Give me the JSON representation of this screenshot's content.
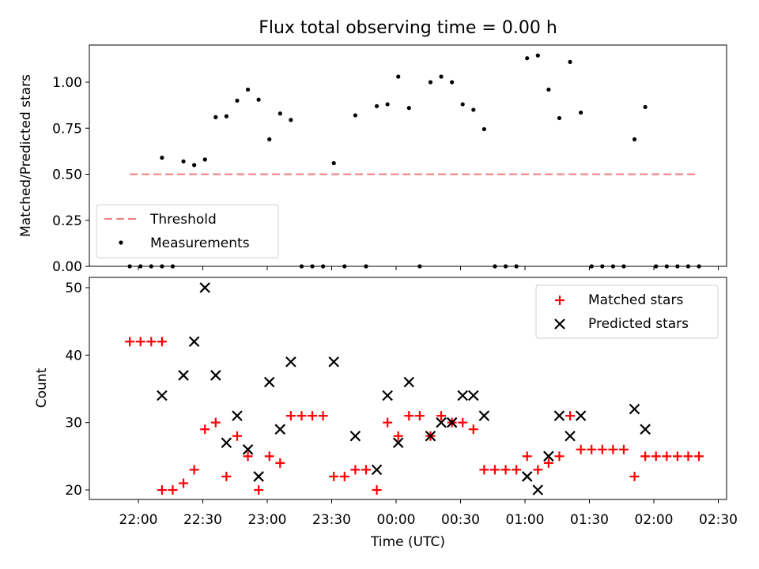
{
  "figure": {
    "title": "Flux total observing time = 0.00 h"
  },
  "chart_data": [
    {
      "type": "scatter",
      "ylabel": "Matched/Predicted stars",
      "ylim": [
        0,
        1.2
      ],
      "yticks": [
        0.0,
        0.25,
        0.5,
        0.75,
        1.0
      ],
      "ytick_labels": [
        "0.00",
        "0.25",
        "0.50",
        "0.75",
        "1.00"
      ],
      "legend": {
        "placement": "lower-left",
        "entries": [
          "Threshold",
          "Measurements"
        ]
      },
      "threshold": {
        "name": "Threshold",
        "value": 0.5,
        "x_start": "21:56",
        "x_end": "02:20",
        "color": "#f08080"
      },
      "series": [
        {
          "name": "Measurements",
          "color": "#000000",
          "points": [
            [
              "21:56",
              0
            ],
            [
              "21:61",
              0
            ],
            [
              "22:06",
              0
            ],
            [
              "22:11",
              0
            ],
            [
              "22:11",
              0.59
            ],
            [
              "22:16",
              0
            ],
            [
              "22:21",
              0.57
            ],
            [
              "22:26",
              0.55
            ],
            [
              "22:31",
              0.58
            ],
            [
              "22:36",
              0.81
            ],
            [
              "22:41",
              0.815
            ],
            [
              "22:46",
              0.9
            ],
            [
              "22:51",
              0.96
            ],
            [
              "22:56",
              0.905
            ],
            [
              "23:01",
              0.69
            ],
            [
              "23:06",
              0.83
            ],
            [
              "23:11",
              0.795
            ],
            [
              "23:16",
              0
            ],
            [
              "23:21",
              0
            ],
            [
              "23:26",
              0
            ],
            [
              "23:31",
              0.56
            ],
            [
              "23:36",
              0
            ],
            [
              "23:41",
              0.82
            ],
            [
              "23:46",
              0
            ],
            [
              "23:51",
              0.87
            ],
            [
              "23:56",
              0.88
            ],
            [
              "00:01",
              1.03
            ],
            [
              "00:06",
              0.86
            ],
            [
              "00:11",
              0
            ],
            [
              "00:16",
              1.0
            ],
            [
              "00:21",
              1.03
            ],
            [
              "00:26",
              1.0
            ],
            [
              "00:31",
              0.88
            ],
            [
              "00:36",
              0.85
            ],
            [
              "00:41",
              0.745
            ],
            [
              "00:46",
              0
            ],
            [
              "00:51",
              0
            ],
            [
              "00:56",
              0
            ],
            [
              "01:01",
              1.13
            ],
            [
              "01:06",
              1.145
            ],
            [
              "01:11",
              0.96
            ],
            [
              "01:16",
              0.805
            ],
            [
              "01:21",
              1.11
            ],
            [
              "01:26",
              0.835
            ],
            [
              "01:31",
              0
            ],
            [
              "01:36",
              0
            ],
            [
              "01:41",
              0
            ],
            [
              "01:46",
              0
            ],
            [
              "01:51",
              0.69
            ],
            [
              "01:56",
              0.865
            ],
            [
              "02:01",
              0
            ],
            [
              "02:06",
              0
            ],
            [
              "02:11",
              0
            ],
            [
              "02:16",
              0
            ],
            [
              "02:21",
              0
            ]
          ]
        }
      ]
    },
    {
      "type": "scatter",
      "xlabel": "Time (UTC)",
      "ylabel": "Count",
      "ylim": [
        18.5,
        51.5
      ],
      "yticks": [
        20,
        30,
        40,
        50
      ],
      "ytick_labels": [
        "20",
        "30",
        "40",
        "50"
      ],
      "xticks": [
        "22:00",
        "22:30",
        "23:00",
        "23:30",
        "00:00",
        "00:30",
        "01:00",
        "01:30",
        "02:00",
        "02:30"
      ],
      "legend": {
        "placement": "top-right",
        "entries": [
          "Matched stars",
          "Predicted stars"
        ]
      },
      "series": [
        {
          "name": "Matched stars",
          "marker": "plus",
          "color": "#ff0000",
          "points": [
            [
              "21:56",
              42
            ],
            [
              "22:01",
              42
            ],
            [
              "22:06",
              42
            ],
            [
              "22:11",
              42
            ],
            [
              "22:11",
              20
            ],
            [
              "22:16",
              20
            ],
            [
              "22:21",
              21
            ],
            [
              "22:26",
              23
            ],
            [
              "22:31",
              29
            ],
            [
              "22:36",
              30
            ],
            [
              "22:41",
              22
            ],
            [
              "22:46",
              28
            ],
            [
              "22:51",
              25
            ],
            [
              "22:56",
              20
            ],
            [
              "23:01",
              25
            ],
            [
              "23:06",
              24
            ],
            [
              "23:11",
              31
            ],
            [
              "23:16",
              31
            ],
            [
              "23:21",
              31
            ],
            [
              "23:26",
              31
            ],
            [
              "23:31",
              22
            ],
            [
              "23:36",
              22
            ],
            [
              "23:41",
              23
            ],
            [
              "23:46",
              23
            ],
            [
              "23:51",
              20
            ],
            [
              "23:56",
              30
            ],
            [
              "00:01",
              28
            ],
            [
              "00:06",
              31
            ],
            [
              "00:11",
              31
            ],
            [
              "00:16",
              28
            ],
            [
              "00:21",
              31
            ],
            [
              "00:26",
              30
            ],
            [
              "00:31",
              30
            ],
            [
              "00:36",
              29
            ],
            [
              "00:41",
              23
            ],
            [
              "00:46",
              23
            ],
            [
              "00:51",
              23
            ],
            [
              "00:56",
              23
            ],
            [
              "01:01",
              25
            ],
            [
              "01:06",
              23
            ],
            [
              "01:11",
              24
            ],
            [
              "01:16",
              25
            ],
            [
              "01:21",
              31
            ],
            [
              "01:26",
              26
            ],
            [
              "01:31",
              26
            ],
            [
              "01:36",
              26
            ],
            [
              "01:41",
              26
            ],
            [
              "01:46",
              26
            ],
            [
              "01:51",
              22
            ],
            [
              "01:56",
              25
            ],
            [
              "02:01",
              25
            ],
            [
              "02:06",
              25
            ],
            [
              "02:11",
              25
            ],
            [
              "02:16",
              25
            ],
            [
              "02:21",
              25
            ]
          ]
        },
        {
          "name": "Predicted stars",
          "marker": "x",
          "color": "#000000",
          "points": [
            [
              "22:11",
              34
            ],
            [
              "22:21",
              37
            ],
            [
              "22:26",
              42
            ],
            [
              "22:31",
              50
            ],
            [
              "22:36",
              37
            ],
            [
              "22:41",
              27
            ],
            [
              "22:46",
              31
            ],
            [
              "22:51",
              26
            ],
            [
              "22:56",
              22
            ],
            [
              "23:01",
              36
            ],
            [
              "23:06",
              29
            ],
            [
              "23:11",
              39
            ],
            [
              "23:31",
              39
            ],
            [
              "23:41",
              28
            ],
            [
              "23:51",
              23
            ],
            [
              "23:56",
              34
            ],
            [
              "00:01",
              27
            ],
            [
              "00:06",
              36
            ],
            [
              "00:16",
              28
            ],
            [
              "00:21",
              30
            ],
            [
              "00:26",
              30
            ],
            [
              "00:31",
              34
            ],
            [
              "00:36",
              34
            ],
            [
              "00:41",
              31
            ],
            [
              "01:01",
              22
            ],
            [
              "01:06",
              20
            ],
            [
              "01:11",
              25
            ],
            [
              "01:16",
              31
            ],
            [
              "01:21",
              28
            ],
            [
              "01:26",
              31
            ],
            [
              "01:51",
              32
            ],
            [
              "01:56",
              29
            ]
          ]
        }
      ]
    }
  ]
}
